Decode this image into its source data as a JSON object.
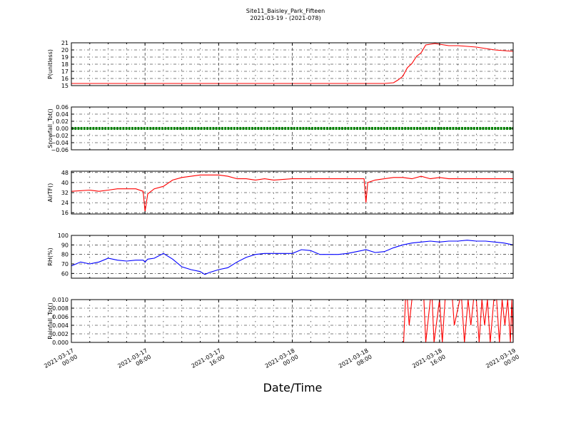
{
  "figure": {
    "title_line1": "Site11_Baisley_Park_Fifteen",
    "title_line2": "2021-03-19 - (2021-078)",
    "xlabel": "Date/Time",
    "x_tick_labels": [
      [
        "2021-03-17",
        "00:00"
      ],
      [
        "2021-03-17",
        "08:00"
      ],
      [
        "2021-03-17",
        "16:00"
      ],
      [
        "2021-03-18",
        "00:00"
      ],
      [
        "2021-03-18",
        "08:00"
      ],
      [
        "2021-03-18",
        "16:00"
      ],
      [
        "2021-03-19",
        "00:00"
      ]
    ]
  },
  "chart_data": [
    {
      "type": "line",
      "ylabel": "P(unitless)",
      "ylim": [
        15,
        21
      ],
      "yticks": [
        15,
        16,
        17,
        18,
        19,
        20,
        21
      ],
      "ytick_labels": [
        "15",
        "16",
        "17",
        "18",
        "19",
        "20",
        "21"
      ],
      "color": "#ff0000",
      "grid": true,
      "x_hours": [
        0,
        6,
        12,
        18,
        24,
        30,
        34,
        35,
        35.5,
        36,
        36.5,
        37,
        37.5,
        38,
        38.5,
        39,
        39.5,
        40,
        41,
        42,
        43,
        44,
        45,
        46,
        47,
        48
      ],
      "values": [
        15.3,
        15.3,
        15.3,
        15.3,
        15.3,
        15.3,
        15.3,
        15.4,
        15.8,
        16.3,
        17.5,
        18.1,
        19.1,
        19.6,
        20.7,
        20.8,
        20.9,
        20.8,
        20.6,
        20.6,
        20.5,
        20.4,
        20.2,
        20.0,
        19.9,
        19.8
      ]
    },
    {
      "type": "line",
      "ylabel": "Snowfall_Tot()",
      "ylim": [
        -0.06,
        0.06
      ],
      "yticks": [
        -0.06,
        -0.04,
        -0.02,
        0,
        0.02,
        0.04,
        0.06
      ],
      "ytick_labels": [
        "−0.06",
        "−0.04",
        "−0.02",
        "0.00",
        "0.02",
        "0.04",
        "0.06"
      ],
      "color": "#008000",
      "marker": "dot",
      "grid": true,
      "x_hours": [
        0,
        48
      ],
      "values": [
        0,
        0
      ]
    },
    {
      "type": "line",
      "ylabel": "AirTF()",
      "ylim": [
        15,
        49
      ],
      "yticks": [
        16,
        24,
        32,
        40,
        48
      ],
      "ytick_labels": [
        "16",
        "24",
        "32",
        "40",
        "48"
      ],
      "color": "#ff0000",
      "grid": true,
      "x_hours": [
        0,
        2,
        3,
        4,
        5,
        6,
        7,
        7.8,
        8.0,
        8.3,
        9,
        10,
        11,
        12,
        13,
        14,
        15,
        16,
        17,
        18,
        19,
        20,
        21,
        22,
        24,
        26,
        28,
        30,
        31.8,
        32,
        32.2,
        33,
        34,
        35,
        36,
        37,
        38,
        39,
        40,
        41,
        42,
        44,
        46,
        48
      ],
      "values": [
        33,
        34,
        33,
        34,
        35,
        35,
        35,
        33,
        17,
        31,
        35,
        37,
        42,
        44,
        45,
        46,
        46,
        46,
        45,
        43,
        43,
        42,
        43,
        42,
        43,
        43,
        43,
        43,
        43,
        24,
        40,
        42,
        43,
        44,
        44,
        43,
        45,
        43,
        44,
        43,
        43,
        43,
        43,
        43
      ]
    },
    {
      "type": "line",
      "ylabel": "RH(%)",
      "ylim": [
        55,
        100
      ],
      "yticks": [
        60,
        70,
        80,
        90,
        100
      ],
      "ytick_labels": [
        "60",
        "70",
        "80",
        "90",
        "100"
      ],
      "color": "#0000ff",
      "grid": true,
      "x_hours": [
        0,
        1,
        2,
        3,
        4,
        5,
        6,
        7,
        7.8,
        8,
        8.3,
        9,
        10,
        11,
        12,
        13,
        14,
        14.5,
        15,
        16,
        17,
        18,
        19,
        20,
        21,
        22,
        24,
        25,
        26,
        27,
        28,
        29,
        30,
        31,
        32,
        33,
        34,
        35,
        36,
        37,
        38,
        39,
        40,
        41,
        42,
        43,
        44,
        45,
        46,
        47,
        48
      ],
      "values": [
        68,
        72,
        70,
        72,
        76,
        74,
        73,
        74,
        74,
        72,
        75,
        76,
        81,
        75,
        67,
        64,
        62,
        59,
        61,
        64,
        66,
        72,
        77,
        80,
        81,
        81,
        81,
        85,
        84,
        80,
        80,
        80,
        81,
        83,
        85,
        82,
        83,
        87,
        90,
        92,
        93,
        94,
        93,
        94,
        94,
        95,
        94,
        94,
        93,
        92,
        90
      ]
    },
    {
      "type": "line",
      "ylabel": "Rainfall_Tot()",
      "ylim": [
        0,
        0.01
      ],
      "yticks": [
        0,
        0.002,
        0.004,
        0.006,
        0.008,
        0.01
      ],
      "ytick_labels": [
        "0.000",
        "0.002",
        "0.004",
        "0.006",
        "0.008",
        "0.010"
      ],
      "color": "#ff0000",
      "grid": true,
      "x_hours": [
        0,
        36.1,
        36.3,
        36.5,
        36.7,
        37.0,
        37.2,
        37.5,
        38.3,
        38.5,
        39,
        39.2,
        39.4,
        40,
        40.3,
        40.6,
        41.2,
        41.4,
        41.6,
        42.2,
        42.4,
        42.7,
        43.1,
        43.4,
        43.7,
        44.0,
        44.3,
        44.6,
        44.9,
        45.2,
        45.5,
        45.9,
        46.2,
        46.5,
        46.8,
        47.1,
        47.4,
        47.7,
        47.85,
        48
      ],
      "values": [
        0,
        0,
        0.01,
        0.01,
        0.004,
        0.01,
        0.01,
        0.01,
        0.01,
        0,
        0.01,
        0.01,
        0,
        0.01,
        0,
        0.01,
        0.01,
        0.01,
        0.004,
        0.01,
        0.01,
        0,
        0.01,
        0.004,
        0.01,
        0.01,
        0,
        0.01,
        0.004,
        0.01,
        0,
        0.01,
        0.01,
        0,
        0.01,
        0.004,
        0.01,
        0,
        0.01,
        0
      ]
    }
  ]
}
